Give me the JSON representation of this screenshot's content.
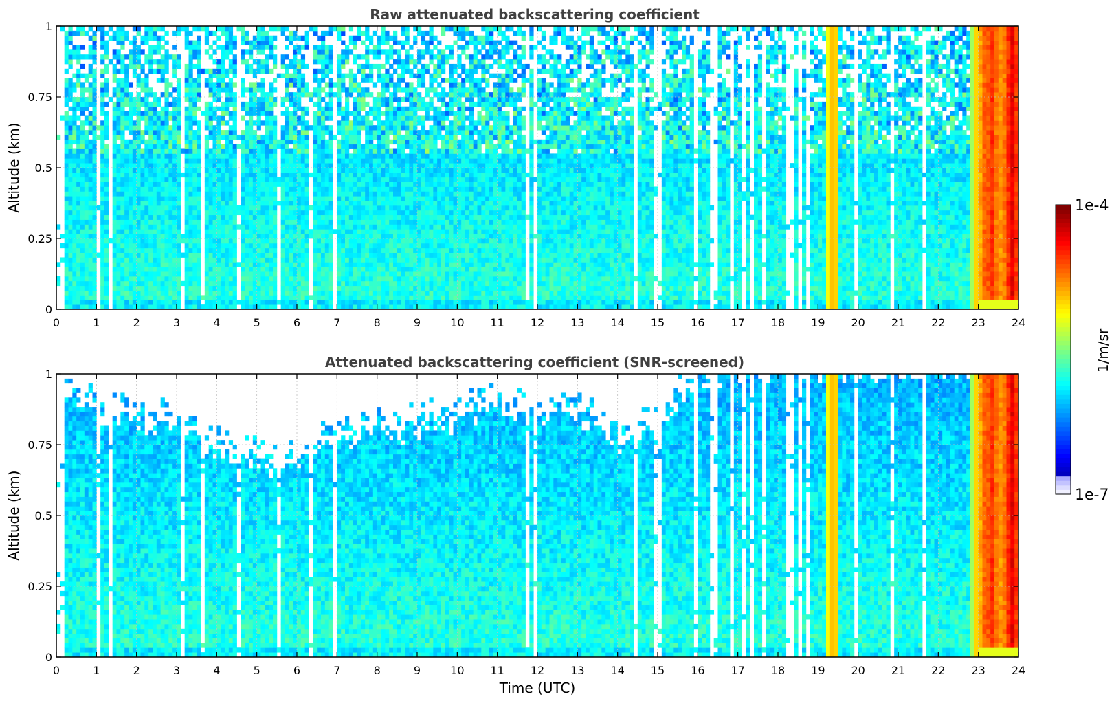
{
  "chart_data": [
    {
      "type": "heatmap",
      "title": "Raw attenuated backscattering coefficient",
      "xlabel": "",
      "ylabel": "Altitude (km)",
      "xlim": [
        0,
        24
      ],
      "ylim": [
        0,
        1
      ],
      "xticks": [
        "0",
        "1",
        "2",
        "3",
        "4",
        "5",
        "6",
        "7",
        "8",
        "9",
        "10",
        "11",
        "12",
        "13",
        "14",
        "15",
        "16",
        "17",
        "18",
        "19",
        "20",
        "21",
        "22",
        "23",
        "24"
      ],
      "yticks": [
        "0",
        "0.25",
        "0.5",
        "0.75",
        "1"
      ],
      "grid": true,
      "colorscale": "jet (log)",
      "description_values": {
        "background_level_log10": -5.9,
        "bright_band_hours": [
          [
            19.2,
            19.5
          ],
          [
            22.9,
            24
          ]
        ],
        "noise_onset_altitude_km": 0.55
      }
    },
    {
      "type": "heatmap",
      "title": "Attenuated backscattering coefficient (SNR-screened)",
      "xlabel": "Time (UTC)",
      "ylabel": "Altitude (km)",
      "xlim": [
        0,
        24
      ],
      "ylim": [
        0,
        1
      ],
      "xticks": [
        "0",
        "1",
        "2",
        "3",
        "4",
        "5",
        "6",
        "7",
        "8",
        "9",
        "10",
        "11",
        "12",
        "13",
        "14",
        "15",
        "16",
        "17",
        "18",
        "19",
        "20",
        "21",
        "22",
        "23",
        "24"
      ],
      "yticks": [
        "0",
        "0.25",
        "0.5",
        "0.75",
        "1"
      ],
      "grid": true,
      "colorscale": "jet (log)",
      "description_values": {
        "screened_top_altitude_km_by_hour": [
          0.92,
          0.85,
          0.82,
          0.8,
          0.72,
          0.68,
          0.66,
          0.74,
          0.78,
          0.8,
          0.82,
          0.88,
          0.85,
          0.84,
          0.74,
          0.82,
          0.95,
          1.0,
          1.0,
          1.0,
          1.0,
          1.0,
          1.0,
          1.0
        ]
      }
    }
  ],
  "colorbar": {
    "label": "1/m/sr",
    "max_label": "1e-4",
    "min_label": "1e-7",
    "scale": "log"
  },
  "colors": {
    "axis": "#000000",
    "title": "#404040",
    "grid": "#bfbfbf"
  }
}
